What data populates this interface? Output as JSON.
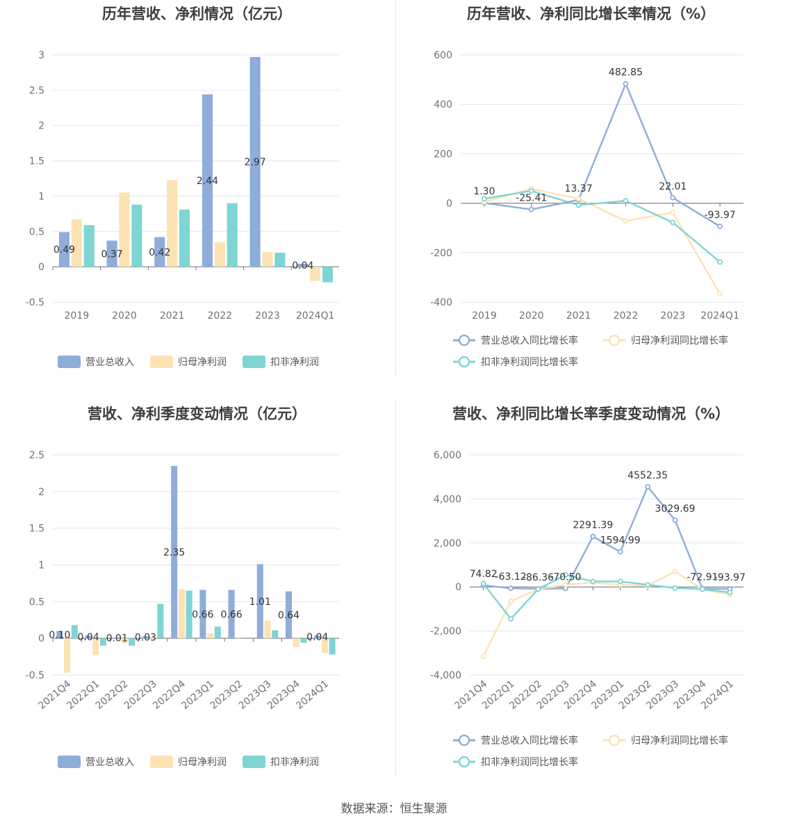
{
  "source": "数据来源：恒生聚源",
  "colors": {
    "revenue": "#8eadd9",
    "net": "#fde3b3",
    "deducted": "#7fd4d4",
    "grid": "#e0e6f1",
    "axis": "#6e7079"
  },
  "chart_data": [
    {
      "type": "bar",
      "title": "历年营收、净利情况（亿元）",
      "categories": [
        "2019",
        "2020",
        "2021",
        "2022",
        "2023",
        "2024Q1"
      ],
      "ylim": [
        -0.5,
        3
      ],
      "yticks": [
        "3",
        "2.5",
        "2",
        "1.5",
        "1",
        "0.5",
        "0",
        "-0.5"
      ],
      "series": [
        {
          "name": "营业总收入",
          "values": [
            0.49,
            0.37,
            0.42,
            2.44,
            2.97,
            0.04
          ],
          "labels": [
            "0.49",
            "0.37",
            "0.42",
            "2.44",
            "2.97",
            "0.04"
          ]
        },
        {
          "name": "归母净利润",
          "values": [
            0.67,
            1.05,
            1.23,
            0.35,
            0.21,
            -0.2
          ]
        },
        {
          "name": "扣非净利润",
          "values": [
            0.59,
            0.88,
            0.81,
            0.9,
            0.2,
            -0.22
          ]
        }
      ],
      "legend": "bottom"
    },
    {
      "type": "line",
      "title": "历年营收、净利同比增长率情况（%）",
      "categories": [
        "2019",
        "2020",
        "2021",
        "2022",
        "2023",
        "2024Q1"
      ],
      "ylim": [
        -400,
        600
      ],
      "yticks": [
        "600",
        "400",
        "200",
        "0",
        "-200",
        "-400"
      ],
      "series": [
        {
          "name": "营业总收入同比增长率",
          "values": [
            1.3,
            -25.41,
            13.37,
            482.85,
            22.01,
            -93.97
          ],
          "labels": [
            "1.30",
            "-25.41",
            "13.37",
            "482.85",
            "22.01",
            "-93.97"
          ]
        },
        {
          "name": "归母净利润同比增长率",
          "values": [
            5,
            58,
            18,
            -72,
            -38,
            -367
          ]
        },
        {
          "name": "扣非净利润同比增长率",
          "values": [
            18,
            50,
            -8,
            10,
            -78,
            -238
          ]
        }
      ],
      "legend": "bottom"
    },
    {
      "type": "bar",
      "title": "营收、净利季度变动情况（亿元）",
      "categories": [
        "2021Q4",
        "2022Q1",
        "2022Q2",
        "2022Q3",
        "2022Q4",
        "2023Q1",
        "2023Q2",
        "2023Q3",
        "2023Q4",
        "2024Q1"
      ],
      "ylim": [
        -0.5,
        2.5
      ],
      "yticks": [
        "2.5",
        "2",
        "1.5",
        "1",
        "0.5",
        "0",
        "-0.5"
      ],
      "series": [
        {
          "name": "营业总收入",
          "values": [
            0.1,
            0.04,
            0.01,
            0.03,
            2.35,
            0.66,
            0.66,
            1.01,
            0.64,
            0.04
          ],
          "labels": [
            "0.10",
            "0.04",
            "0.01",
            "0.03",
            "2.35",
            "0.66",
            "0.66",
            "1.01",
            "0.64",
            "0.04"
          ]
        },
        {
          "name": "归母净利润",
          "values": [
            -0.47,
            -0.23,
            -0.07,
            0.0,
            0.67,
            0.07,
            0.02,
            0.24,
            -0.12,
            -0.2
          ]
        },
        {
          "name": "扣非净利润",
          "values": [
            0.18,
            -0.1,
            -0.1,
            0.47,
            0.65,
            0.16,
            0.01,
            0.11,
            -0.06,
            -0.22
          ]
        }
      ],
      "legend": "bottom"
    },
    {
      "type": "line",
      "title": "营收、净利同比增长率季度变动情况（%）",
      "categories": [
        "2021Q4",
        "2022Q1",
        "2022Q2",
        "2022Q3",
        "2022Q4",
        "2023Q1",
        "2023Q2",
        "2023Q3",
        "2023Q4",
        "2024Q1"
      ],
      "ylim": [
        -4000,
        6000
      ],
      "yticks": [
        "6,000",
        "4,000",
        "2,000",
        "0",
        "-2,000",
        "-4,000"
      ],
      "series": [
        {
          "name": "营业总收入同比增长率",
          "values": [
            74.82,
            -63.12,
            -86.36,
            -70.5,
            2291.39,
            1594.99,
            4552.35,
            3029.69,
            -72.91,
            -93.97
          ],
          "labels": [
            "74.82",
            "-63.12",
            "-86.36",
            "-70.50",
            "2291.39",
            "1594.99",
            "4552.35",
            "3029.69",
            "-72.91",
            "-93.97"
          ]
        },
        {
          "name": "归母净利润同比增长率",
          "values": [
            -3150,
            -650,
            -100,
            100,
            200,
            100,
            50,
            700,
            -100,
            -350
          ]
        },
        {
          "name": "扣非净利润同比增长率",
          "values": [
            150,
            -1450,
            -100,
            550,
            250,
            250,
            100,
            -50,
            -100,
            -250
          ]
        }
      ],
      "legend": "bottom"
    }
  ]
}
